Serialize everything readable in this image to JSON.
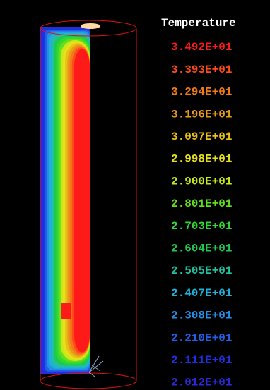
{
  "legend": {
    "title": "Temperature",
    "labels": [
      "3.492E+01",
      "3.393E+01",
      "3.294E+01",
      "3.196E+01",
      "3.097E+01",
      "2.998E+01",
      "2.900E+01",
      "2.801E+01",
      "2.703E+01",
      "2.604E+01",
      "2.505E+01",
      "2.407E+01",
      "2.308E+01",
      "2.210E+01",
      "2.111E+01",
      "2.012E+01"
    ]
  }
}
